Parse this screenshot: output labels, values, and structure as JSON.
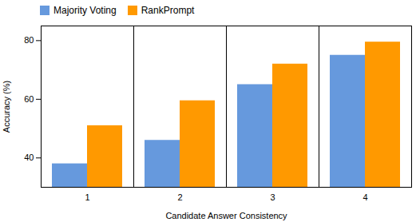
{
  "chart_data": {
    "type": "bar",
    "categories": [
      1,
      2,
      3,
      4
    ],
    "series": [
      {
        "name": "Majority Voting",
        "color": "#6699DD",
        "values": [
          38,
          46,
          65,
          75
        ]
      },
      {
        "name": "RankPrompt",
        "color": "#FF9900",
        "values": [
          51,
          59.5,
          72,
          79.5
        ]
      }
    ],
    "xlabel": "Candidate Answer Consistency",
    "ylabel": "Accuracy (%)",
    "ylim": [
      30,
      85
    ],
    "yticks": [
      40,
      60,
      80
    ],
    "legend": "upper left",
    "grid": false
  }
}
